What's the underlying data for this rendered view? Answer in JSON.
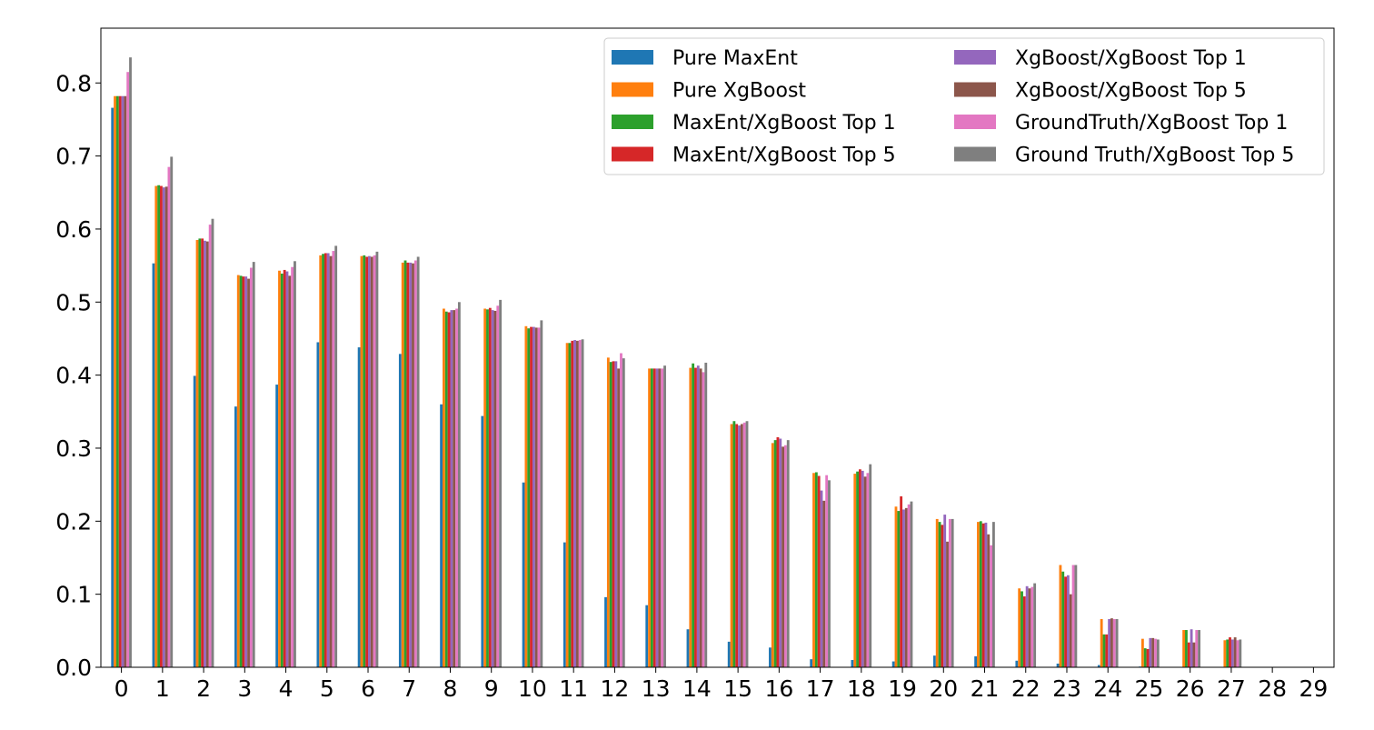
{
  "chart_data": {
    "type": "bar",
    "title": "",
    "xlabel": "",
    "ylabel": "",
    "ylim": [
      0,
      0.875
    ],
    "xlim": [
      -0.5,
      29.5
    ],
    "categories": [
      "0",
      "1",
      "2",
      "3",
      "4",
      "5",
      "6",
      "7",
      "8",
      "9",
      "10",
      "11",
      "12",
      "13",
      "14",
      "15",
      "16",
      "17",
      "18",
      "19",
      "20",
      "21",
      "22",
      "23",
      "24",
      "25",
      "26",
      "27",
      "28",
      "29"
    ],
    "yticks": [
      0.0,
      0.1,
      0.2,
      0.3,
      0.4,
      0.5,
      0.6,
      0.7,
      0.8
    ],
    "ytick_labels": [
      "0.0",
      "0.1",
      "0.2",
      "0.3",
      "0.4",
      "0.5",
      "0.6",
      "0.7",
      "0.8"
    ],
    "grid": false,
    "legend": {
      "position": "top-right",
      "columns": 2
    },
    "series": [
      {
        "name": "Pure MaxEnt",
        "color": "#1f77b4",
        "values": [
          0.766,
          0.553,
          0.399,
          0.357,
          0.387,
          0.445,
          0.438,
          0.429,
          0.36,
          0.344,
          0.253,
          0.171,
          0.096,
          0.085,
          0.052,
          0.035,
          0.027,
          0.011,
          0.01,
          0.008,
          0.016,
          0.015,
          0.009,
          0.005,
          0.003,
          0.001,
          0,
          0,
          0,
          0
        ]
      },
      {
        "name": "Pure XgBoost",
        "color": "#ff7f0e",
        "values": [
          0.782,
          0.659,
          0.585,
          0.537,
          0.543,
          0.564,
          0.563,
          0.554,
          0.491,
          0.491,
          0.467,
          0.444,
          0.424,
          0.409,
          0.41,
          0.333,
          0.307,
          0.266,
          0.265,
          0.22,
          0.203,
          0.199,
          0.108,
          0.14,
          0.066,
          0.039,
          0.051,
          0.037,
          0,
          0
        ]
      },
      {
        "name": "MaxEnt/XgBoost Top 1",
        "color": "#2ca02c",
        "values": [
          0.782,
          0.66,
          0.587,
          0.536,
          0.539,
          0.566,
          0.564,
          0.557,
          0.487,
          0.49,
          0.464,
          0.444,
          0.418,
          0.409,
          0.416,
          0.337,
          0.311,
          0.267,
          0.268,
          0.214,
          0.199,
          0.2,
          0.104,
          0.131,
          0.045,
          0.026,
          0.051,
          0.038,
          0,
          0
        ]
      },
      {
        "name": "MaxEnt/XgBoost Top 5",
        "color": "#d62728",
        "values": [
          0.782,
          0.659,
          0.587,
          0.535,
          0.544,
          0.567,
          0.562,
          0.554,
          0.486,
          0.492,
          0.466,
          0.447,
          0.419,
          0.409,
          0.41,
          0.333,
          0.315,
          0.262,
          0.271,
          0.234,
          0.195,
          0.197,
          0.097,
          0.124,
          0.045,
          0.025,
          0.034,
          0.041,
          0,
          0
        ]
      },
      {
        "name": "XgBoost/XgBoost Top 1",
        "color": "#9467bd",
        "values": [
          0.782,
          0.657,
          0.584,
          0.535,
          0.542,
          0.567,
          0.563,
          0.554,
          0.489,
          0.489,
          0.466,
          0.448,
          0.419,
          0.409,
          0.413,
          0.331,
          0.313,
          0.242,
          0.269,
          0.216,
          0.209,
          0.198,
          0.111,
          0.126,
          0.066,
          0.04,
          0.052,
          0.038,
          0,
          0
        ]
      },
      {
        "name": "XgBoost/XgBoost Top 5",
        "color": "#8c564b",
        "values": [
          0.782,
          0.658,
          0.583,
          0.532,
          0.536,
          0.563,
          0.562,
          0.553,
          0.489,
          0.488,
          0.465,
          0.447,
          0.409,
          0.409,
          0.409,
          0.333,
          0.302,
          0.228,
          0.261,
          0.218,
          0.172,
          0.182,
          0.108,
          0.1,
          0.067,
          0.04,
          0.034,
          0.041,
          0,
          0
        ]
      },
      {
        "name": "GroundTruth/XgBoost Top 1",
        "color": "#e377c2",
        "values": [
          0.815,
          0.685,
          0.606,
          0.547,
          0.548,
          0.57,
          0.564,
          0.557,
          0.491,
          0.495,
          0.465,
          0.448,
          0.43,
          0.409,
          0.404,
          0.335,
          0.304,
          0.263,
          0.266,
          0.223,
          0.203,
          0.167,
          0.11,
          0.14,
          0.066,
          0.039,
          0.051,
          0.037,
          0,
          0
        ]
      },
      {
        "name": "Ground Truth/XgBoost Top 5",
        "color": "#7f7f7f",
        "values": [
          0.835,
          0.699,
          0.614,
          0.555,
          0.556,
          0.577,
          0.569,
          0.562,
          0.5,
          0.503,
          0.475,
          0.449,
          0.423,
          0.413,
          0.417,
          0.337,
          0.311,
          0.256,
          0.278,
          0.227,
          0.203,
          0.199,
          0.115,
          0.14,
          0.066,
          0.038,
          0.051,
          0.038,
          0,
          0
        ]
      }
    ]
  }
}
